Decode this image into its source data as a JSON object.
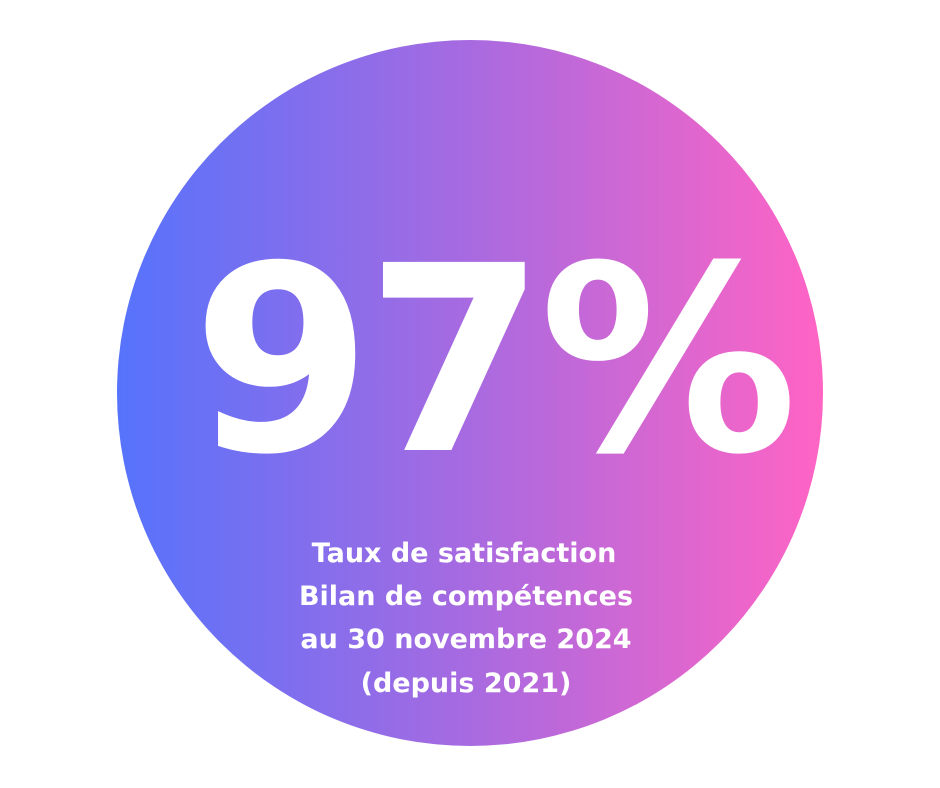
{
  "stat": {
    "headline": "97%",
    "caption": [
      "Taux de satisfaction",
      "Bilan de compétences",
      "au 30 novembre 2024",
      "(depuis 2021)"
    ]
  }
}
